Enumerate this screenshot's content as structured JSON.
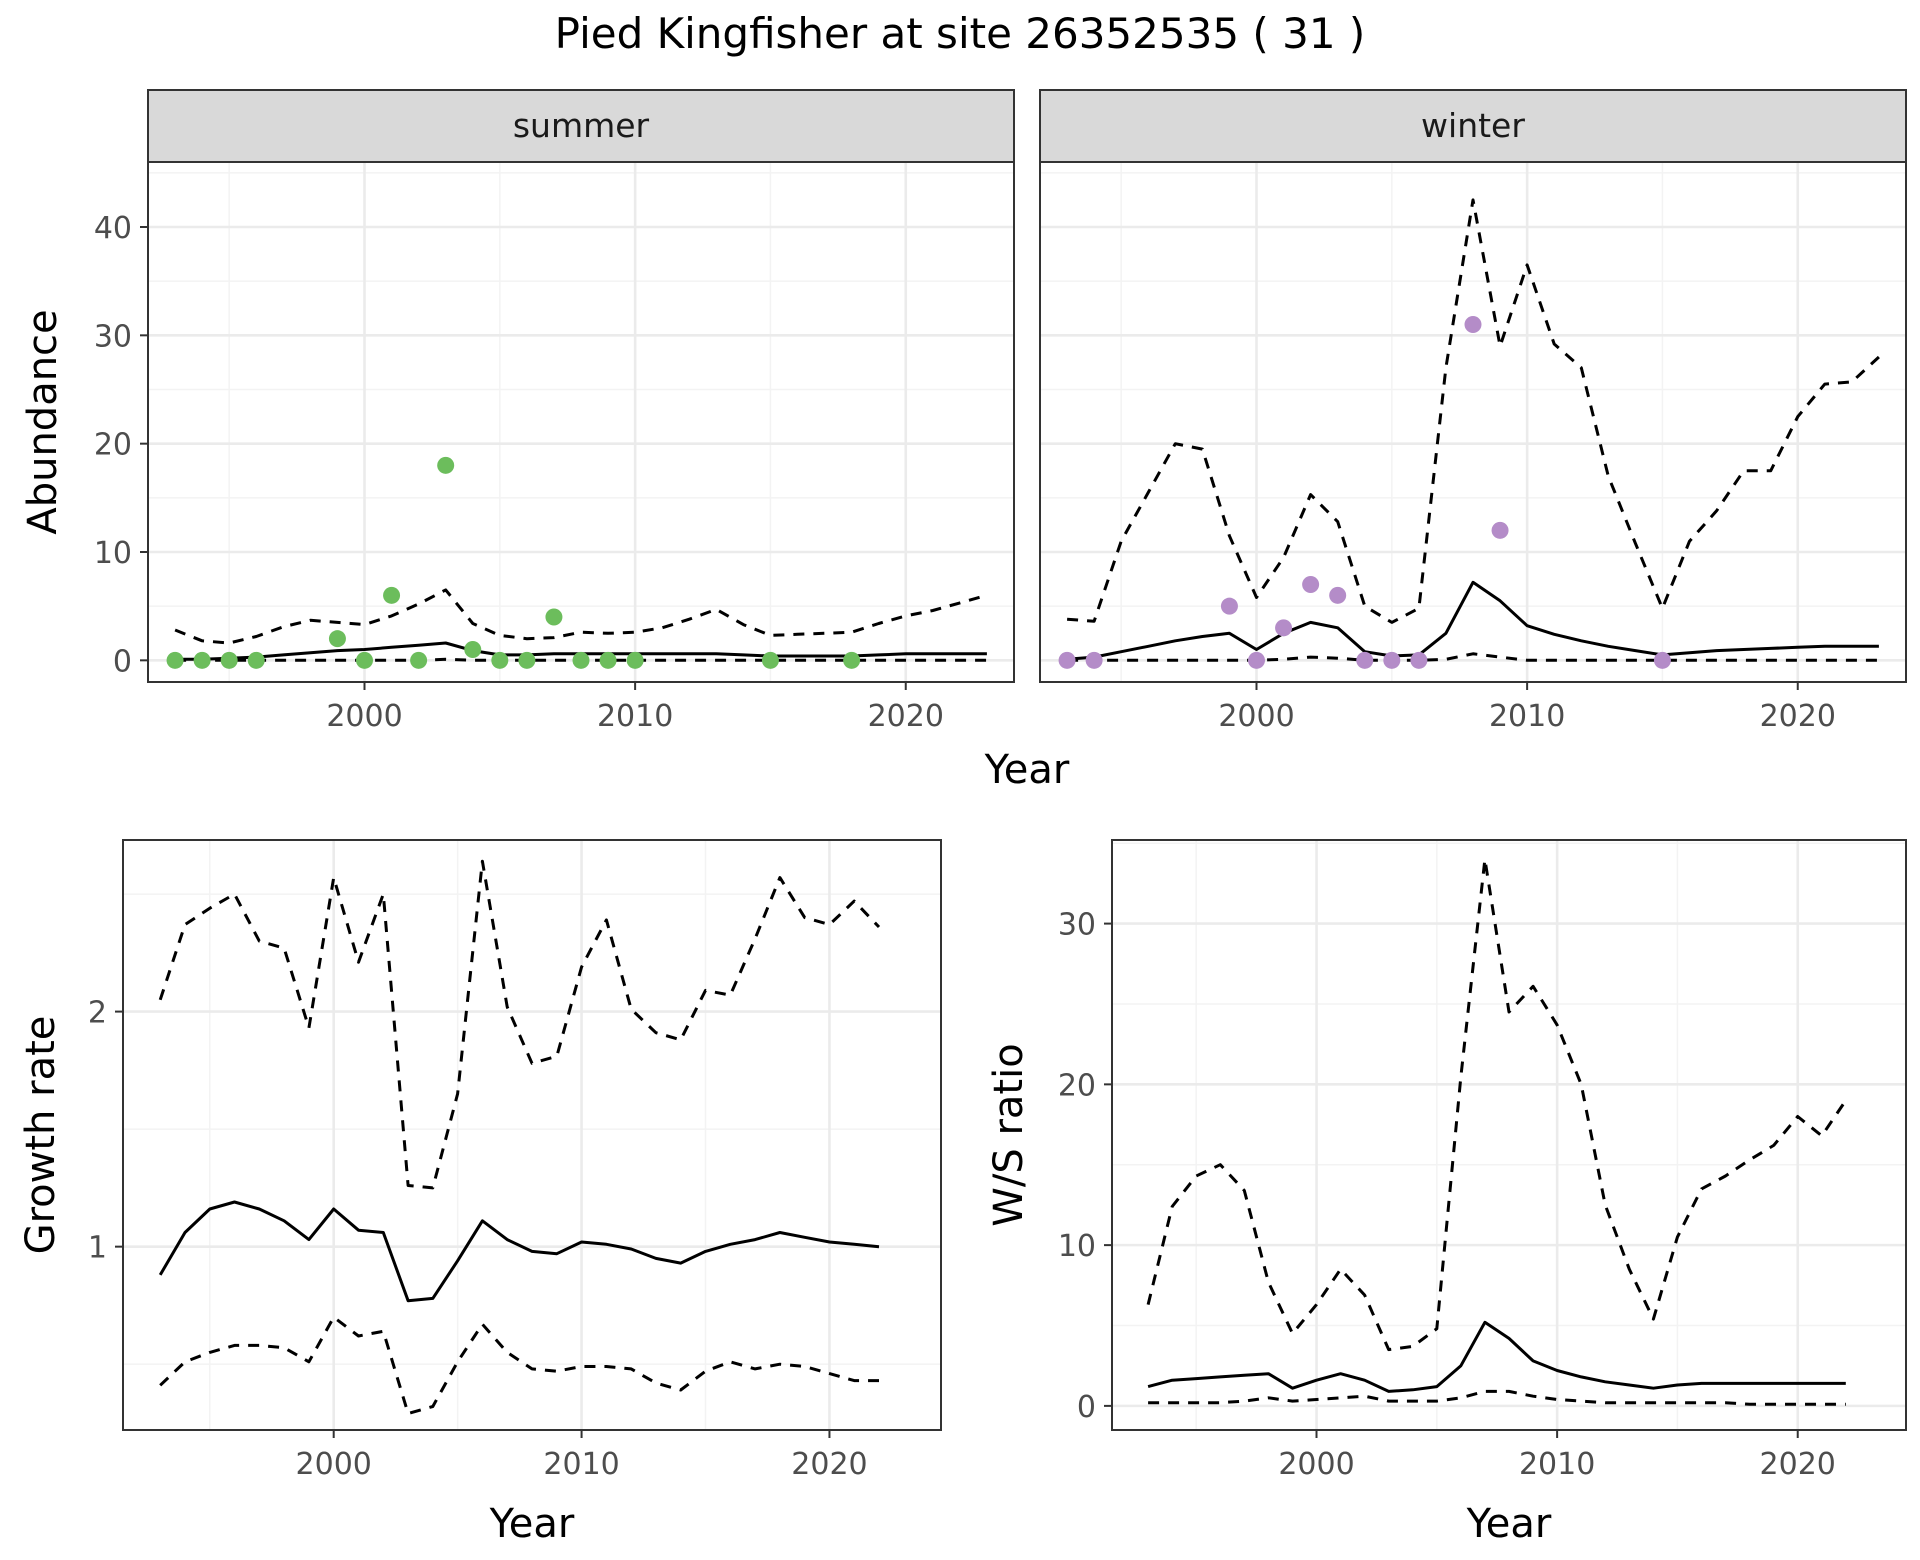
{
  "title": "Pied Kingfisher at site 26352535 ( 31 )",
  "colors": {
    "summer_points": "#6cbd5c",
    "winter_points": "#b48cc8",
    "line": "#000000",
    "strip_bg": "#d9d9d9",
    "grid_major": "#ebebeb",
    "grid_minor": "#f3f3f3",
    "panel_border": "#333333"
  },
  "chart_data": [
    {
      "type": "line",
      "panel": "summer",
      "strip_label": "summer",
      "xlabel": "Year",
      "ylabel": "Abundance",
      "xlim": [
        1992,
        2024
      ],
      "ylim": [
        -2,
        46
      ],
      "xticks": [
        2000,
        2010,
        2020
      ],
      "yticks": [
        0,
        10,
        20,
        30,
        40
      ],
      "grid": true,
      "x": [
        1993,
        1994,
        1995,
        1996,
        1997,
        1998,
        1999,
        2000,
        2001,
        2002,
        2003,
        2004,
        2005,
        2006,
        2007,
        2008,
        2009,
        2010,
        2011,
        2012,
        2013,
        2014,
        2015,
        2016,
        2017,
        2018,
        2019,
        2020,
        2021,
        2022,
        2023
      ],
      "series": [
        {
          "style": "solid",
          "values": [
            0.1,
            0.1,
            0.2,
            0.3,
            0.5,
            0.7,
            0.9,
            1.0,
            1.2,
            1.4,
            1.6,
            0.9,
            0.5,
            0.5,
            0.6,
            0.6,
            0.6,
            0.6,
            0.6,
            0.6,
            0.6,
            0.5,
            0.4,
            0.4,
            0.4,
            0.4,
            0.5,
            0.6,
            0.6,
            0.6,
            0.6
          ]
        },
        {
          "style": "dashed",
          "values": [
            2.8,
            1.8,
            1.6,
            2.2,
            3.1,
            3.7,
            3.5,
            3.3,
            4.1,
            5.2,
            6.5,
            3.4,
            2.3,
            2.0,
            2.1,
            2.6,
            2.5,
            2.6,
            3.0,
            3.8,
            4.7,
            3.3,
            2.3,
            2.4,
            2.5,
            2.6,
            3.4,
            4.1,
            4.6,
            5.3,
            6.0
          ]
        },
        {
          "style": "dashed",
          "values": [
            0,
            0,
            0,
            0,
            0,
            0,
            0,
            0,
            0,
            0,
            0.1,
            0,
            0,
            0,
            0,
            0,
            0,
            0,
            0,
            0,
            0,
            0,
            0,
            0,
            0,
            0,
            0,
            0,
            0,
            0,
            0
          ]
        }
      ],
      "points": {
        "x": [
          1993,
          1994,
          1995,
          1996,
          1999,
          2000,
          2001,
          2002,
          2003,
          2004,
          2005,
          2006,
          2007,
          2008,
          2009,
          2010,
          2015,
          2018
        ],
        "y": [
          0,
          0,
          0,
          0,
          2,
          0,
          6,
          0,
          18,
          1,
          0,
          0,
          4,
          0,
          0,
          0,
          0,
          0
        ]
      }
    },
    {
      "type": "line",
      "panel": "winter",
      "strip_label": "winter",
      "xlabel": "Year",
      "ylabel": "Abundance",
      "xlim": [
        1992,
        2024
      ],
      "ylim": [
        -2,
        46
      ],
      "xticks": [
        2000,
        2010,
        2020
      ],
      "yticks": [
        0,
        10,
        20,
        30,
        40
      ],
      "grid": true,
      "x": [
        1993,
        1994,
        1995,
        1996,
        1997,
        1998,
        1999,
        2000,
        2001,
        2002,
        2003,
        2004,
        2005,
        2006,
        2007,
        2008,
        2009,
        2010,
        2011,
        2012,
        2013,
        2014,
        2015,
        2016,
        2017,
        2018,
        2019,
        2020,
        2021,
        2022,
        2023
      ],
      "series": [
        {
          "style": "solid",
          "values": [
            0.1,
            0.3,
            0.8,
            1.3,
            1.8,
            2.2,
            2.5,
            1.0,
            2.5,
            3.5,
            3.0,
            0.8,
            0.4,
            0.5,
            2.5,
            7.2,
            5.5,
            3.2,
            2.4,
            1.8,
            1.3,
            0.9,
            0.5,
            0.7,
            0.9,
            1.0,
            1.1,
            1.2,
            1.3,
            1.3,
            1.3
          ]
        },
        {
          "style": "dashed",
          "values": [
            3.8,
            3.6,
            11.0,
            15.5,
            20.0,
            19.5,
            11.5,
            5.8,
            9.5,
            15.3,
            12.8,
            5.0,
            3.5,
            4.8,
            27.0,
            42.5,
            29.0,
            36.5,
            29.2,
            27.0,
            17.0,
            10.8,
            4.8,
            11.0,
            13.8,
            17.5,
            17.5,
            22.5,
            25.5,
            25.7,
            28.0
          ]
        },
        {
          "style": "dashed",
          "values": [
            0,
            0,
            0,
            0,
            0,
            0,
            0,
            0,
            0.1,
            0.3,
            0.2,
            0,
            0,
            0,
            0.1,
            0.6,
            0.3,
            0,
            0,
            0,
            0,
            0,
            0,
            0,
            0,
            0,
            0,
            0,
            0,
            0,
            0
          ]
        }
      ],
      "points": {
        "x": [
          1993,
          1994,
          1999,
          2000,
          2001,
          2002,
          2003,
          2004,
          2005,
          2006,
          2008,
          2009,
          2015
        ],
        "y": [
          0,
          0,
          5,
          0,
          3,
          7,
          6,
          0,
          0,
          0,
          31,
          12,
          0
        ]
      }
    },
    {
      "type": "line",
      "panel": "growth",
      "xlabel": "Year",
      "ylabel": "Growth rate",
      "xlim": [
        1991.5,
        2024.5
      ],
      "ylim": [
        0.22,
        2.73
      ],
      "xticks": [
        2000,
        2010,
        2020
      ],
      "yticks": [
        1,
        2
      ],
      "grid": true,
      "x": [
        1993,
        1994,
        1995,
        1996,
        1997,
        1998,
        1999,
        2000,
        2001,
        2002,
        2003,
        2004,
        2005,
        2006,
        2007,
        2008,
        2009,
        2010,
        2011,
        2012,
        2013,
        2014,
        2015,
        2016,
        2017,
        2018,
        2019,
        2020,
        2021,
        2022
      ],
      "series": [
        {
          "style": "solid",
          "values": [
            0.88,
            1.06,
            1.16,
            1.19,
            1.16,
            1.11,
            1.03,
            1.16,
            1.07,
            1.06,
            0.77,
            0.78,
            0.94,
            1.11,
            1.03,
            0.98,
            0.97,
            1.02,
            1.01,
            0.99,
            0.95,
            0.93,
            0.98,
            1.01,
            1.03,
            1.06,
            1.04,
            1.02,
            1.01,
            1.0
          ]
        },
        {
          "style": "dashed",
          "values": [
            2.05,
            2.37,
            2.44,
            2.5,
            2.3,
            2.27,
            1.93,
            2.57,
            2.21,
            2.5,
            1.26,
            1.25,
            1.65,
            2.64,
            2.02,
            1.78,
            1.81,
            2.19,
            2.39,
            2.01,
            1.91,
            1.88,
            2.09,
            2.07,
            2.31,
            2.57,
            2.4,
            2.37,
            2.47,
            2.36
          ]
        },
        {
          "style": "dashed",
          "values": [
            0.41,
            0.51,
            0.55,
            0.58,
            0.58,
            0.57,
            0.51,
            0.7,
            0.62,
            0.64,
            0.29,
            0.32,
            0.51,
            0.67,
            0.55,
            0.48,
            0.47,
            0.49,
            0.49,
            0.48,
            0.42,
            0.39,
            0.47,
            0.51,
            0.48,
            0.5,
            0.49,
            0.46,
            0.43,
            0.43
          ]
        }
      ]
    },
    {
      "type": "line",
      "panel": "ws_ratio",
      "xlabel": "Year",
      "ylabel": "W/S ratio",
      "xlim": [
        1991.5,
        2024.5
      ],
      "ylim": [
        -1.5,
        35.2
      ],
      "xticks": [
        2000,
        2010,
        2020
      ],
      "yticks": [
        0,
        10,
        20,
        30
      ],
      "grid": true,
      "x": [
        1993,
        1994,
        1995,
        1996,
        1997,
        1998,
        1999,
        2000,
        2001,
        2002,
        2003,
        2004,
        2005,
        2006,
        2007,
        2008,
        2009,
        2010,
        2011,
        2012,
        2013,
        2014,
        2015,
        2016,
        2017,
        2018,
        2019,
        2020,
        2021,
        2022
      ],
      "series": [
        {
          "style": "solid",
          "values": [
            1.2,
            1.6,
            1.7,
            1.8,
            1.9,
            2.0,
            1.1,
            1.6,
            2.0,
            1.6,
            0.9,
            1.0,
            1.2,
            2.5,
            5.2,
            4.2,
            2.8,
            2.2,
            1.8,
            1.5,
            1.3,
            1.1,
            1.3,
            1.4,
            1.4,
            1.4,
            1.4,
            1.4,
            1.4,
            1.4
          ]
        },
        {
          "style": "dashed",
          "values": [
            6.3,
            12.4,
            14.3,
            15.0,
            13.4,
            7.7,
            4.5,
            6.3,
            8.5,
            6.9,
            3.5,
            3.7,
            4.8,
            20.5,
            34.0,
            24.5,
            26.1,
            23.7,
            20.0,
            12.5,
            8.5,
            5.4,
            10.5,
            13.5,
            14.3,
            15.3,
            16.2,
            18.0,
            16.8,
            19.0
          ]
        },
        {
          "style": "dashed",
          "values": [
            0.2,
            0.2,
            0.2,
            0.2,
            0.3,
            0.5,
            0.3,
            0.4,
            0.5,
            0.6,
            0.3,
            0.3,
            0.3,
            0.5,
            0.9,
            0.9,
            0.6,
            0.4,
            0.3,
            0.2,
            0.2,
            0.2,
            0.2,
            0.2,
            0.2,
            0.1,
            0.1,
            0.1,
            0.1,
            0.1
          ]
        }
      ]
    }
  ]
}
